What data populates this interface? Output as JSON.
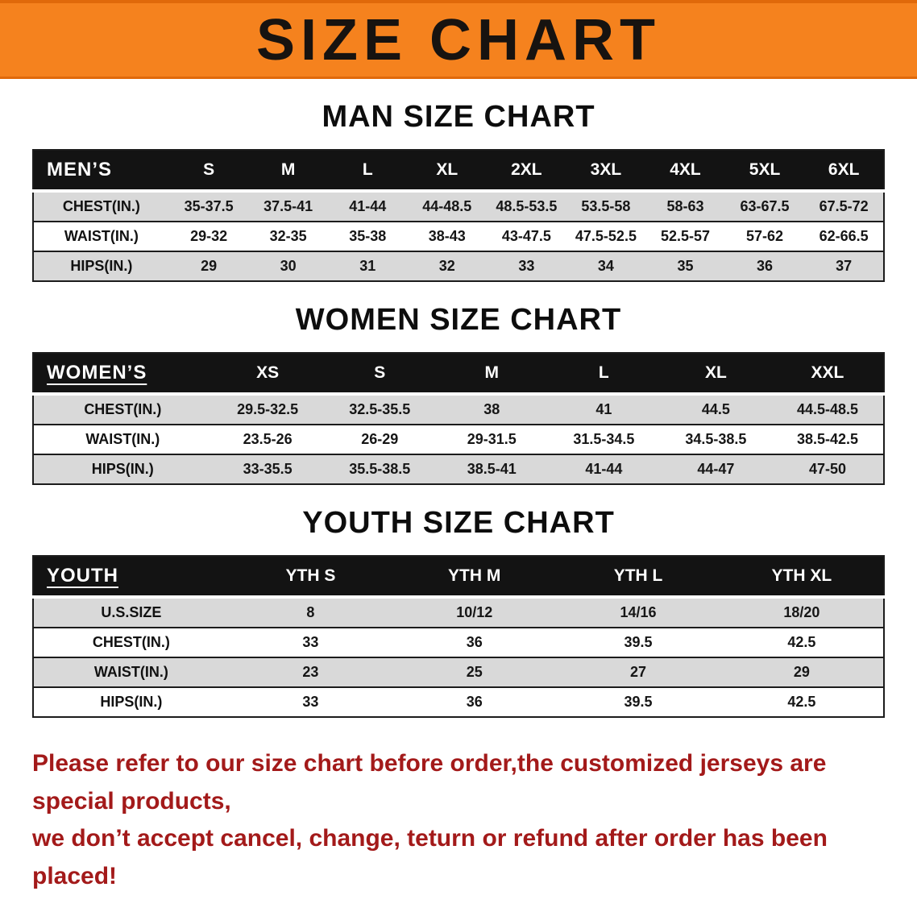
{
  "banner": {
    "title": "SIZE CHART",
    "bg_color": "#f5821e",
    "text_color": "#171310"
  },
  "sections": [
    {
      "title": "MAN SIZE CHART",
      "header_label": "MEN’S",
      "columns": [
        "S",
        "M",
        "L",
        "XL",
        "2XL",
        "3XL",
        "4XL",
        "5XL",
        "6XL"
      ],
      "rows": [
        {
          "label": "CHEST(IN.)",
          "values": [
            "35-37.5",
            "37.5-41",
            "41-44",
            "44-48.5",
            "48.5-53.5",
            "53.5-58",
            "58-63",
            "63-67.5",
            "67.5-72"
          ]
        },
        {
          "label": "WAIST(IN.)",
          "values": [
            "29-32",
            "32-35",
            "35-38",
            "38-43",
            "43-47.5",
            "47.5-52.5",
            "52.5-57",
            "57-62",
            "62-66.5"
          ]
        },
        {
          "label": "HIPS(IN.)",
          "values": [
            "29",
            "30",
            "31",
            "32",
            "33",
            "34",
            "35",
            "36",
            "37"
          ]
        }
      ]
    },
    {
      "title": "WOMEN SIZE CHART",
      "header_label": "WOMEN’S",
      "columns": [
        "XS",
        "S",
        "M",
        "L",
        "XL",
        "XXL"
      ],
      "rows": [
        {
          "label": "CHEST(IN.)",
          "values": [
            "29.5-32.5",
            "32.5-35.5",
            "38",
            "41",
            "44.5",
            "44.5-48.5"
          ]
        },
        {
          "label": "WAIST(IN.)",
          "values": [
            "23.5-26",
            "26-29",
            "29-31.5",
            "31.5-34.5",
            "34.5-38.5",
            "38.5-42.5"
          ]
        },
        {
          "label": "HIPS(IN.)",
          "values": [
            "33-35.5",
            "35.5-38.5",
            "38.5-41",
            "41-44",
            "44-47",
            "47-50"
          ]
        }
      ]
    },
    {
      "title": "YOUTH SIZE CHART",
      "header_label": "YOUTH",
      "columns": [
        "YTH S",
        "YTH M",
        "YTH L",
        "YTH XL"
      ],
      "rows": [
        {
          "label": "U.S.SIZE",
          "values": [
            "8",
            "10/12",
            "14/16",
            "18/20"
          ]
        },
        {
          "label": "CHEST(IN.)",
          "values": [
            "33",
            "36",
            "39.5",
            "42.5"
          ]
        },
        {
          "label": "WAIST(IN.)",
          "values": [
            "23",
            "25",
            "27",
            "29"
          ]
        },
        {
          "label": "HIPS(IN.)",
          "values": [
            "33",
            "36",
            "39.5",
            "42.5"
          ]
        }
      ]
    }
  ],
  "disclaimer": {
    "line1": "Please refer to our size chart before order,the customized jerseys are special products,",
    "line2": "we don’t accept cancel, change, teturn or refund after order has been placed!",
    "color": "#a31a1a"
  }
}
